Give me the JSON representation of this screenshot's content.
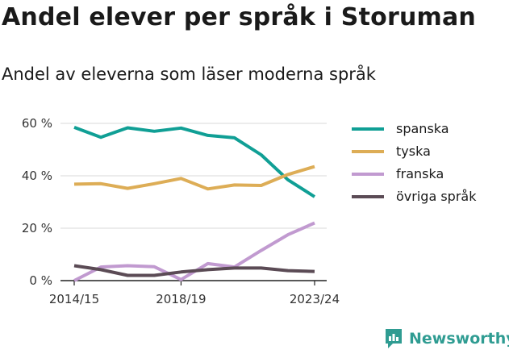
{
  "title": "Andel elever per språk i Storuman",
  "subtitle": "Andel av eleverna som läser moderna språk",
  "brand": {
    "name": "Newsworthy",
    "color": "#2f9c92"
  },
  "chart_data": {
    "type": "line",
    "title": "Andel elever per språk i Storuman",
    "subtitle": "Andel av eleverna som läser moderna språk",
    "xlabel": "",
    "ylabel": "",
    "x": [
      "2014/15",
      "2015/16",
      "2016/17",
      "2017/18",
      "2018/19",
      "2019/20",
      "2020/21",
      "2021/22",
      "2022/23",
      "2023/24"
    ],
    "x_tick_labels": [
      "2014/15",
      "2018/19",
      "2023/24"
    ],
    "ylim": [
      0,
      60
    ],
    "y_ticks": [
      0,
      20,
      40,
      60
    ],
    "y_tick_labels": [
      "0 %",
      "20 %",
      "40 %",
      "60 %"
    ],
    "grid": true,
    "legend_position": "right",
    "series": [
      {
        "name": "spanska",
        "color": "#109f95",
        "values": [
          58.5,
          54.7,
          58.3,
          57.0,
          58.2,
          55.4,
          54.5,
          48.0,
          38.5,
          32.0
        ]
      },
      {
        "name": "tyska",
        "color": "#ddad56",
        "values": [
          36.8,
          37.0,
          35.2,
          37.0,
          39.0,
          35.0,
          36.5,
          36.3,
          40.5,
          43.5
        ]
      },
      {
        "name": "franska",
        "color": "#c19ad0",
        "values": [
          0.0,
          5.2,
          5.7,
          5.3,
          0.4,
          6.5,
          5.2,
          11.5,
          17.5,
          22.0
        ]
      },
      {
        "name": "övriga språk",
        "color": "#5b4b55",
        "values": [
          5.7,
          4.2,
          2.0,
          2.0,
          3.3,
          4.2,
          4.8,
          4.8,
          3.8,
          3.5
        ]
      }
    ]
  }
}
